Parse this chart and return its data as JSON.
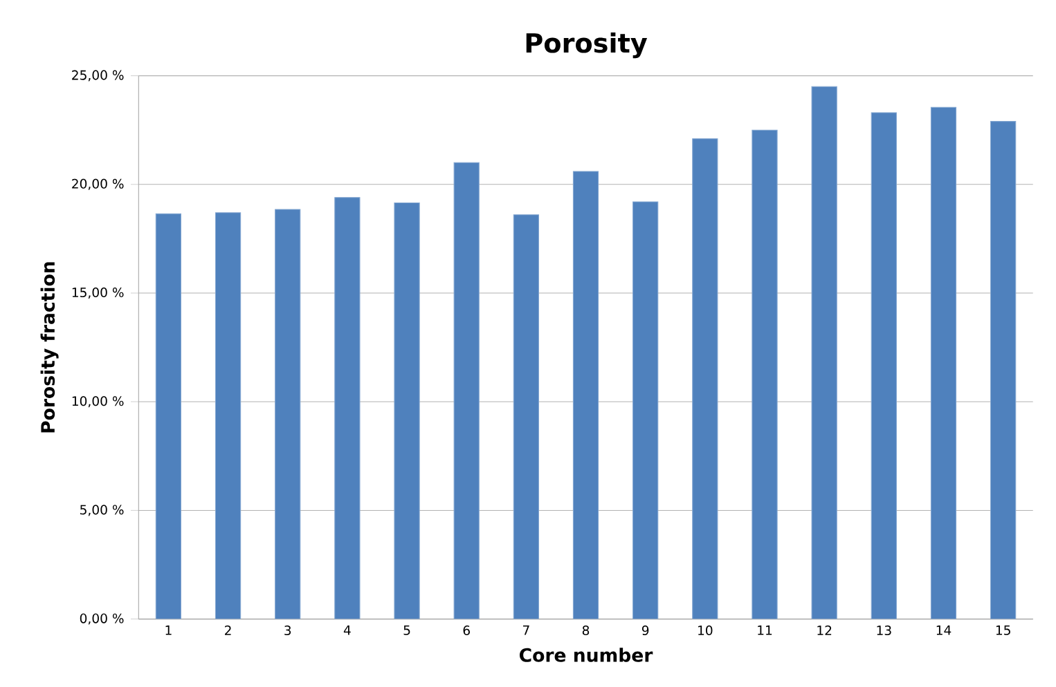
{
  "chart_data": {
    "type": "bar",
    "title": "Porosity",
    "xlabel": "Core number",
    "ylabel": "Porosity fraction",
    "categories": [
      "1",
      "2",
      "3",
      "4",
      "5",
      "6",
      "7",
      "8",
      "9",
      "10",
      "11",
      "12",
      "13",
      "14",
      "15"
    ],
    "values": [
      18.65,
      18.7,
      18.85,
      19.4,
      19.15,
      21.0,
      18.6,
      20.6,
      19.2,
      22.1,
      22.5,
      24.5,
      23.3,
      23.55,
      22.9
    ],
    "color": "#4f81bd",
    "ylim": [
      0,
      25
    ],
    "yticks": [
      {
        "value": 0,
        "label": "0,00 %"
      },
      {
        "value": 5,
        "label": "5,00 %"
      },
      {
        "value": 10,
        "label": "10,00 %"
      },
      {
        "value": 15,
        "label": "15,00 %"
      },
      {
        "value": 20,
        "label": "20,00 %"
      },
      {
        "value": 25,
        "label": "25,00 %"
      }
    ],
    "grid": "y"
  }
}
